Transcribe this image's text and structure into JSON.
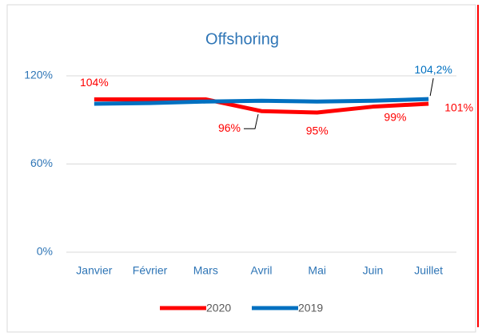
{
  "chart_data": {
    "type": "line",
    "title": "Offshoring",
    "categories": [
      "Janvier",
      "Février",
      "Mars",
      "Avril",
      "Mai",
      "Juin",
      "Juillet"
    ],
    "series": [
      {
        "name": "2020",
        "color": "#ff0000",
        "values": [
          104,
          104,
          104,
          96,
          95,
          99,
          101
        ],
        "value_labels": [
          "104%",
          null,
          null,
          "96%",
          "95%",
          "99%",
          "101%"
        ]
      },
      {
        "name": "2019",
        "color": "#0070c0",
        "values": [
          101,
          101.5,
          102.5,
          103,
          102.5,
          103,
          104.2
        ],
        "value_labels": [
          null,
          null,
          null,
          null,
          null,
          null,
          "104,2%"
        ]
      }
    ],
    "ylim": [
      0,
      120
    ],
    "yticks": [
      {
        "value": 0,
        "label": "0%"
      },
      {
        "value": 60,
        "label": "60%"
      },
      {
        "value": 120,
        "label": "120%"
      }
    ],
    "grid": true,
    "legend": "bottom"
  }
}
